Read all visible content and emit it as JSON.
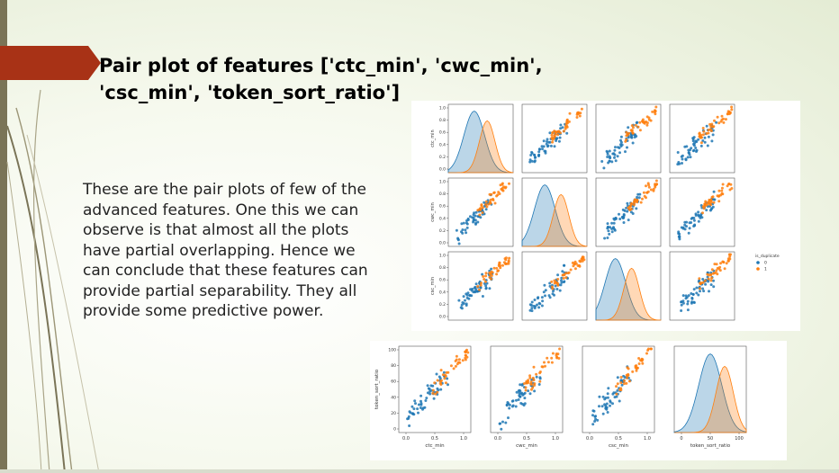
{
  "slide": {
    "title_line1": "Pair plot of features ['ctc_min', 'cwc_min',",
    "title_line2": "'csc_min', 'token_sort_ratio']",
    "body_text": "These are the pair plots of few of the advanced features. One this we can observe is that almost all the plots have partial overlapping. Hence we can conclude that these features can provide partial separability. They all provide some predictive power.",
    "colors": {
      "accent": "#a83216",
      "bar": "#7a7457",
      "class0": "#1f77b4",
      "class1": "#ff7f0e"
    }
  },
  "chart_data": {
    "type": "scatter",
    "kind": "pair plot matrix",
    "variables": [
      "ctc_min",
      "cwc_min",
      "csc_min",
      "token_sort_ratio"
    ],
    "ylabels": [
      "ctc_min",
      "cwc_min",
      "csc_min",
      "token_sort_ratio"
    ],
    "xlabels": [
      "ctc_min",
      "cwc_min",
      "csc_min",
      "token_sort_ratio"
    ],
    "ranges": {
      "ctc_min": [
        0,
        1
      ],
      "cwc_min": [
        0,
        1
      ],
      "csc_min": [
        0,
        1
      ],
      "token_sort_ratio": [
        0,
        100
      ]
    },
    "y_ticks_unit": [
      "0.0",
      "0.2",
      "0.4",
      "0.6",
      "0.8",
      "1.0"
    ],
    "y_ticks_pct": [
      "0",
      "20",
      "40",
      "60",
      "80",
      "100"
    ],
    "x_ticks_unit": [
      "0.0",
      "0.5",
      "1.0"
    ],
    "x_ticks_pct": [
      "0",
      "50",
      "100"
    ],
    "legend": {
      "title": "is_duplicate",
      "entries": [
        "0",
        "1"
      ],
      "position": "right"
    },
    "diagonal": "kde",
    "series": [
      {
        "name": "0",
        "color": "#1f77b4",
        "kde_peaks": {
          "ctc_min": 0.4,
          "cwc_min": 0.35,
          "csc_min": 0.3,
          "token_sort_ratio": 50
        }
      },
      {
        "name": "1",
        "color": "#ff7f0e",
        "kde_peaks": {
          "ctc_min": 0.6,
          "cwc_min": 0.6,
          "csc_min": 0.55,
          "token_sort_ratio": 70
        }
      }
    ],
    "grid": false
  }
}
